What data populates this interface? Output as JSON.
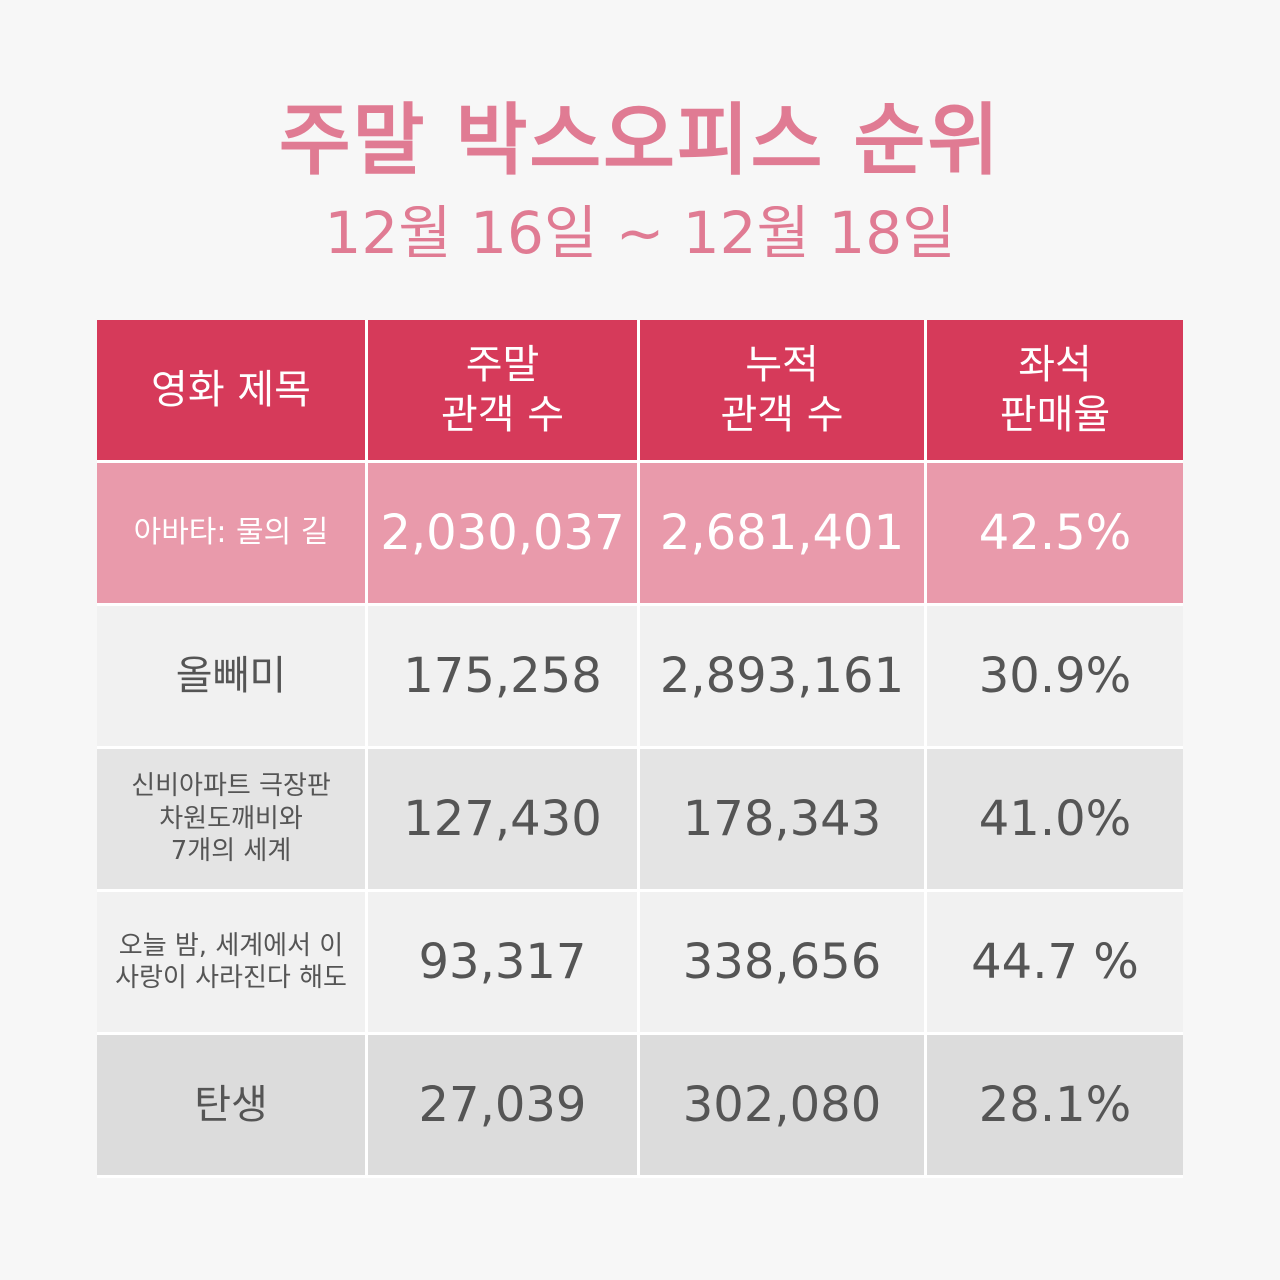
{
  "title": "주말 박스오피스 순위",
  "subtitle": "12월 16일 ~ 12월 18일",
  "chart_data": {
    "type": "table",
    "title": "주말 박스오피스 순위",
    "subtitle": "12월 16일 ~ 12월 18일",
    "columns": [
      "영화 제목",
      "주말\n관객 수",
      "누적\n관객 수",
      "좌석\n판매율"
    ],
    "rows": [
      [
        "아바타: 물의 길",
        "2,030,037",
        "2,681,401",
        "42.5%"
      ],
      [
        "올빼미",
        "175,258",
        "2,893,161",
        "30.9%"
      ],
      [
        "신비아파트 극장판\n차원도깨비와\n7개의 세계",
        "127,430",
        "178,343",
        "41.0%"
      ],
      [
        "오늘 밤, 세계에서 이\n사랑이 사라진다 해도",
        "93,317",
        "338,656",
        "44.7 %"
      ],
      [
        "탄생",
        "27,039",
        "302,080",
        "28.1%"
      ]
    ],
    "colors": {
      "title": "#e07b93",
      "header_bg": "#d63a5a",
      "highlight_row_bg": "#e99aab"
    }
  }
}
